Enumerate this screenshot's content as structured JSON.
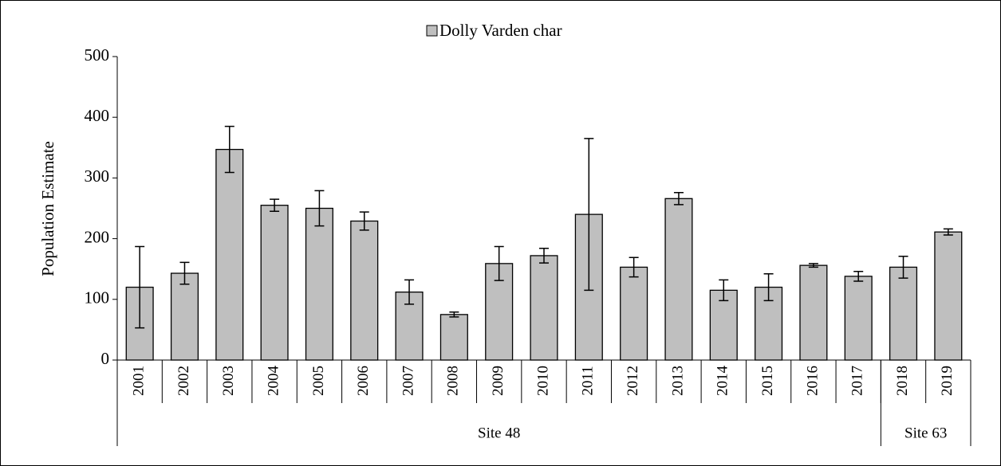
{
  "chart_data": {
    "type": "bar",
    "ylabel": "Population Estimate",
    "categories": [
      "2001",
      "2002",
      "2003",
      "2004",
      "2005",
      "2006",
      "2007",
      "2008",
      "2009",
      "2010",
      "2011",
      "2012",
      "2013",
      "2014",
      "2015",
      "2016",
      "2017",
      "2018",
      "2019"
    ],
    "groups": [
      {
        "name": "Site 48",
        "size": 17
      },
      {
        "name": "Site 63",
        "size": 2
      }
    ],
    "series": [
      {
        "name": "Dolly Varden char",
        "color": "#bfbfbf",
        "values": [
          120,
          143,
          347,
          255,
          250,
          229,
          112,
          75,
          159,
          172,
          240,
          153,
          266,
          115,
          120,
          156,
          138,
          153,
          211
        ],
        "errors": [
          67,
          18,
          38,
          10,
          29,
          15,
          20,
          4,
          28,
          12,
          125,
          16,
          10,
          17,
          22,
          3,
          8,
          18,
          5
        ]
      }
    ],
    "ylim": [
      0,
      500
    ],
    "yticks": [
      0,
      100,
      200,
      300,
      400,
      500
    ],
    "legend": "top"
  }
}
